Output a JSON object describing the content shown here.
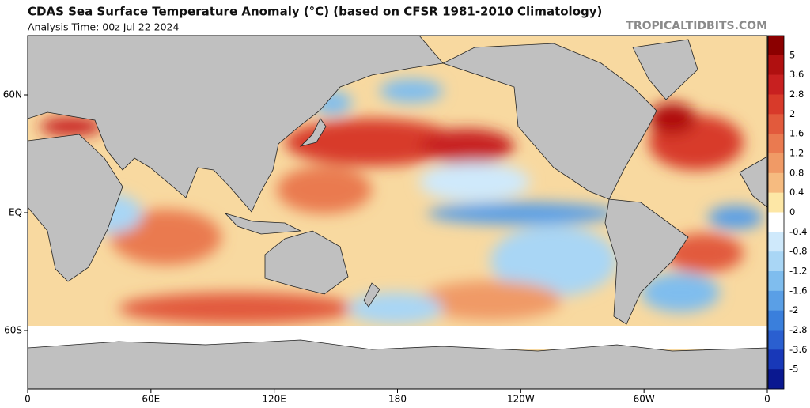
{
  "header": {
    "title": "CDAS Sea Surface Temperature Anomaly (°C) (based on CFSR 1981-2010 Climatology)",
    "subtitle": "Analysis Time: 00z Jul 22 2024",
    "watermark": "TROPICALTIDBITS.COM"
  },
  "map": {
    "lat_labels": [
      "60N",
      "EQ",
      "60S"
    ],
    "lon_labels": [
      "0",
      "60E",
      "120E",
      "180",
      "120W",
      "60W",
      "0"
    ]
  },
  "colorbar": {
    "ticks": [
      5,
      3.6,
      2.8,
      2,
      1.6,
      1.2,
      0.8,
      0.4,
      0,
      -0.4,
      -0.8,
      -1.2,
      -1.6,
      -2,
      -2.8,
      -3.6,
      -5
    ],
    "colors": [
      "#8b0000",
      "#b01010",
      "#c82020",
      "#d83a2a",
      "#e25a3c",
      "#ea7a50",
      "#f09a66",
      "#f6bb80",
      "#fde7a6",
      "#ffffff",
      "#cfe9fb",
      "#a9d6f5",
      "#7fbdee",
      "#5a9fe6",
      "#3a7fdc",
      "#2a5fd0",
      "#1838b8",
      "#0a1890"
    ]
  }
}
